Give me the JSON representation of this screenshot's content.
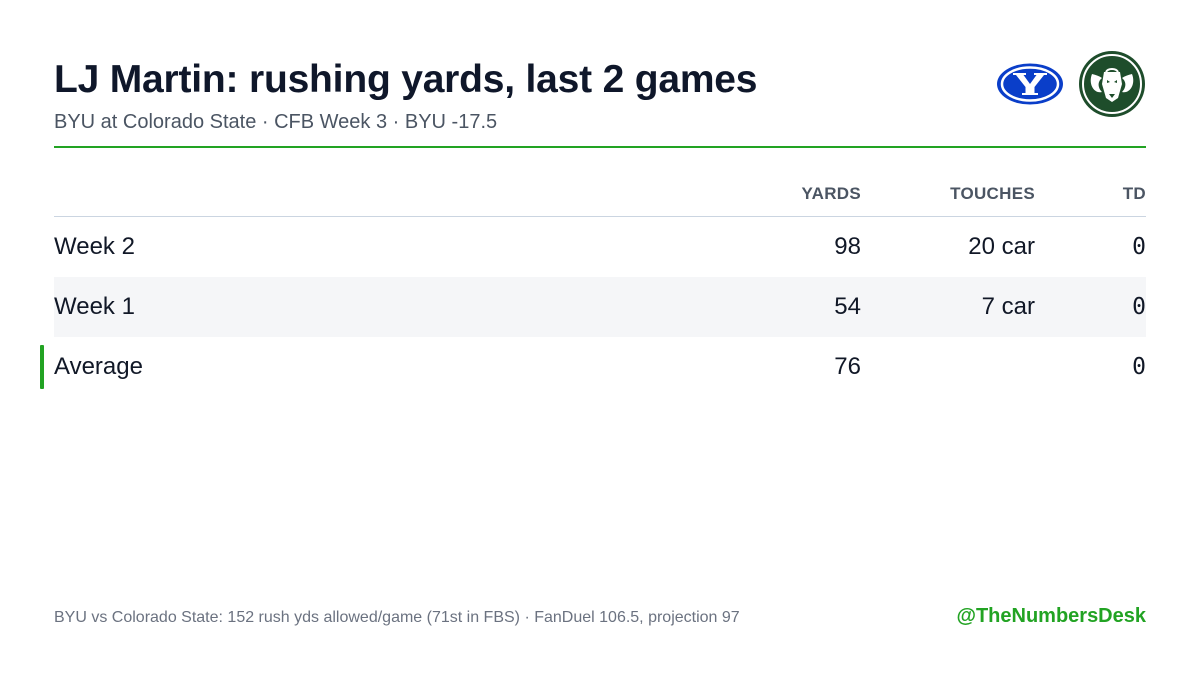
{
  "header": {
    "title": "LJ Martin: rushing yards, last 2 games",
    "subtitle": "BYU at Colorado State · CFB Week 3 · BYU -17.5"
  },
  "logos": {
    "left": {
      "icon": "byu-logo-icon",
      "color": "#0a3ec9"
    },
    "right": {
      "icon": "colorado-state-ram-logo-icon",
      "color": "#1e4d2b"
    }
  },
  "table": {
    "columns": [
      "YARDS",
      "TOUCHES",
      "TD"
    ],
    "rows": [
      {
        "label": "Week 2",
        "yards": "98",
        "touches": "20 car",
        "td": "0"
      },
      {
        "label": "Week 1",
        "yards": "54",
        "touches": "7 car",
        "td": "0"
      },
      {
        "label": "Average",
        "yards": "76",
        "touches": "",
        "td": "0"
      }
    ]
  },
  "footer": {
    "note": "BYU vs Colorado State: 152 rush yds allowed/game (71st in FBS) · FanDuel 106.5, projection 97",
    "handle": "@TheNumbersDesk"
  },
  "colors": {
    "accent": "#22a323",
    "title": "#0f172a",
    "muted": "#4b5563",
    "row_alt": "#f5f6f8"
  }
}
